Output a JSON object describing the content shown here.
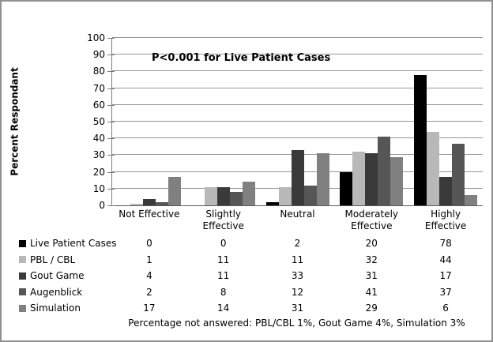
{
  "chart_data": {
    "type": "bar",
    "annotation": "P<0.001 for Live Patient Cases",
    "ylabel": "Percent Respondant",
    "xlabel": "",
    "ylim": [
      0,
      100
    ],
    "ytick_step": 10,
    "grid": true,
    "legend_position": "bottom-table",
    "categories": [
      "Not Effective",
      "Slightly Effective",
      "Neutral",
      "Moderately Effective",
      "Highly Effective"
    ],
    "series": [
      {
        "name": "Live Patient Cases",
        "color": "#000000",
        "texture": null,
        "values": [
          0,
          0,
          2,
          20,
          78
        ]
      },
      {
        "name": "PBL / CBL",
        "color": "#b8b8b8",
        "texture": "dotted",
        "values": [
          1,
          11,
          11,
          32,
          44
        ]
      },
      {
        "name": "Gout Game",
        "color": "#3a3a3a",
        "texture": "dotted",
        "values": [
          4,
          11,
          33,
          31,
          17
        ]
      },
      {
        "name": "Augenblick",
        "color": "#565656",
        "texture": null,
        "values": [
          2,
          8,
          12,
          41,
          37
        ]
      },
      {
        "name": "Simulation",
        "color": "#808080",
        "texture": null,
        "values": [
          17,
          14,
          31,
          29,
          6
        ]
      }
    ],
    "footnote": "Percentage not answered: PBL/CBL 1%, Gout Game 4%, Simulation 3%"
  },
  "colors": {
    "frame_border": "#919191",
    "gridline": "#979797",
    "axis": "#5a5a5a"
  }
}
